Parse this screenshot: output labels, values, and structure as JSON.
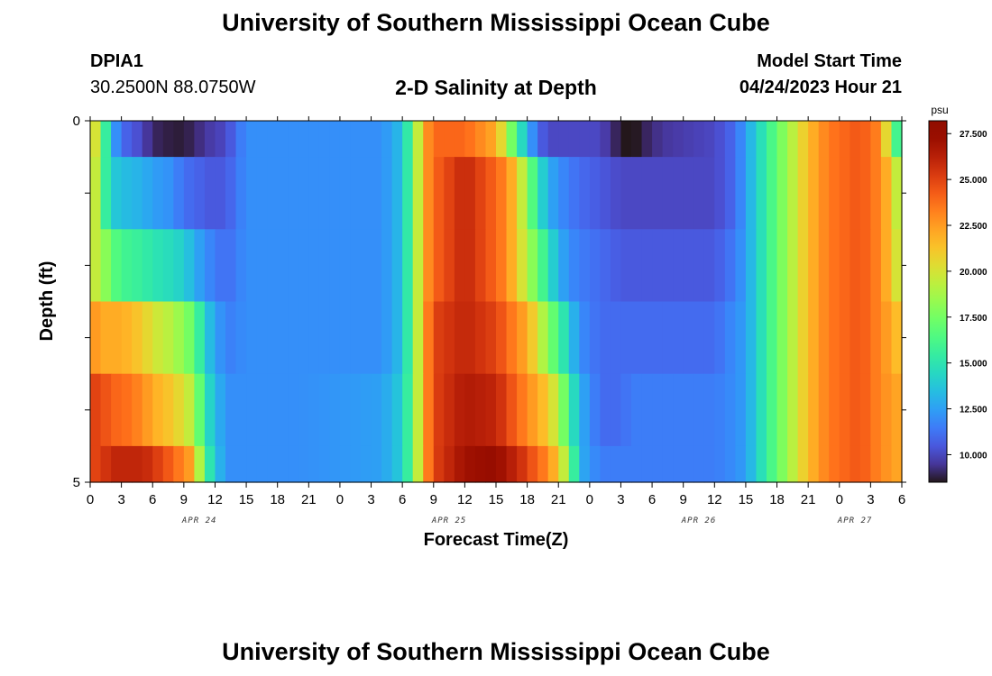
{
  "header": {
    "title": "University of Southern Mississippi Ocean Cube",
    "station": "DPIA1",
    "coords": "30.2500N  88.0750W",
    "subtitle": "2-D Salinity at Depth",
    "model_start_label": "Model Start Time",
    "model_start_value": "04/24/2023 Hour 21"
  },
  "footer": {
    "title": "University of Southern Mississippi Ocean Cube"
  },
  "chart_data": {
    "type": "heatmap",
    "title": "2-D Salinity at Depth",
    "xlabel": "Forecast Time(Z)",
    "ylabel": "Depth (ft)",
    "units": "psu",
    "colormap": "turbo",
    "value_range": [
      8.5,
      28.2
    ],
    "x_hours": [
      0,
      78
    ],
    "x_tick_labels": [
      "0",
      "3",
      "6",
      "9",
      "12",
      "15",
      "18",
      "21",
      "0",
      "3",
      "6",
      "9",
      "12",
      "15",
      "18",
      "21",
      "0",
      "3",
      "6",
      "9",
      "12",
      "15",
      "18",
      "21",
      "0",
      "3",
      "6"
    ],
    "date_labels": [
      {
        "text": "APR 24",
        "hour": 10.5
      },
      {
        "text": "APR 25",
        "hour": 34.5
      },
      {
        "text": "APR 26",
        "hour": 58.5
      },
      {
        "text": "APR 27",
        "hour": 73.5
      }
    ],
    "y_tick_labels": [
      "0",
      "5"
    ],
    "y_range": [
      0,
      5
    ],
    "depth_rows": [
      0,
      1,
      2,
      3,
      4,
      5
    ],
    "colorbar_ticks": [
      "27.500",
      "25.000",
      "22.500",
      "20.000",
      "17.500",
      "15.000",
      "12.500",
      "10.000"
    ],
    "colorbar_values": [
      27.5,
      25.0,
      22.5,
      20.0,
      17.5,
      15.0,
      12.5,
      10.0
    ],
    "keyframes": [
      {
        "hour": 0,
        "values": [
          22,
          22,
          20,
          23,
          25,
          25
        ]
      },
      {
        "hour": 1,
        "values": [
          18,
          17,
          19,
          22,
          25,
          25
        ]
      },
      {
        "hour": 2,
        "values": [
          13,
          14,
          17,
          22,
          24,
          26
        ]
      },
      {
        "hour": 3,
        "values": [
          11,
          13.5,
          16,
          22,
          24,
          26
        ]
      },
      {
        "hour": 5,
        "values": [
          10,
          13,
          15.5,
          21,
          23,
          26
        ]
      },
      {
        "hour": 6,
        "values": [
          9,
          12.5,
          15,
          20,
          22,
          25.5
        ]
      },
      {
        "hour": 8,
        "values": [
          8.7,
          12,
          14.5,
          19,
          21,
          24
        ]
      },
      {
        "hour": 9,
        "values": [
          8.7,
          11,
          14,
          18,
          20,
          23
        ]
      },
      {
        "hour": 10,
        "values": [
          9,
          11,
          13,
          17,
          19,
          22
        ]
      },
      {
        "hour": 11,
        "values": [
          9.5,
          10.5,
          12,
          14,
          15,
          16
        ]
      },
      {
        "hour": 13,
        "values": [
          10,
          10.5,
          11,
          11.5,
          12,
          12
        ]
      },
      {
        "hour": 15,
        "values": [
          12,
          12,
          12,
          12,
          12,
          12
        ]
      },
      {
        "hour": 20,
        "values": [
          12,
          12,
          12,
          12,
          12,
          12
        ]
      },
      {
        "hour": 28,
        "values": [
          12,
          12,
          12,
          12,
          12.5,
          12.5
        ]
      },
      {
        "hour": 30,
        "values": [
          13.5,
          13.5,
          13.5,
          13.5,
          14,
          14
        ]
      },
      {
        "hour": 31,
        "values": [
          17,
          17,
          17,
          17,
          17,
          17
        ]
      },
      {
        "hour": 32,
        "values": [
          22,
          22,
          22,
          22,
          22,
          22
        ]
      },
      {
        "hour": 33,
        "values": [
          24,
          24,
          24,
          25,
          25,
          25
        ]
      },
      {
        "hour": 36,
        "values": [
          24,
          26,
          26,
          26,
          26.5,
          27
        ]
      },
      {
        "hour": 39,
        "values": [
          22,
          24,
          24,
          25,
          26,
          27.5
        ]
      },
      {
        "hour": 40,
        "values": [
          19,
          23,
          23,
          24,
          25,
          26.5
        ]
      },
      {
        "hour": 41,
        "values": [
          16,
          21,
          21,
          23,
          24,
          26
        ]
      },
      {
        "hour": 42,
        "values": [
          13,
          18,
          19,
          22,
          23,
          25
        ]
      },
      {
        "hour": 43,
        "values": [
          11,
          15,
          17,
          20,
          22,
          24
        ]
      },
      {
        "hour": 44,
        "values": [
          10,
          13,
          15,
          18,
          21,
          23
        ]
      },
      {
        "hour": 45,
        "values": [
          10,
          12,
          13,
          16,
          19,
          21
        ]
      },
      {
        "hour": 46,
        "values": [
          10,
          11.5,
          12,
          14,
          16,
          18
        ]
      },
      {
        "hour": 47,
        "values": [
          10,
          11,
          11.5,
          12,
          13,
          13
        ]
      },
      {
        "hour": 49,
        "values": [
          10,
          10.5,
          11,
          11,
          11,
          11.5
        ]
      },
      {
        "hour": 51,
        "values": [
          8.6,
          10,
          10.5,
          11,
          11,
          11.5
        ]
      },
      {
        "hour": 52,
        "values": [
          8.3,
          10,
          10.5,
          11,
          11.5,
          11.5
        ]
      },
      {
        "hour": 53,
        "values": [
          8.8,
          10,
          10.5,
          11,
          11.5,
          11.5
        ]
      },
      {
        "hour": 55,
        "values": [
          9.5,
          10,
          10.5,
          11,
          11.5,
          11.5
        ]
      },
      {
        "hour": 60,
        "values": [
          10,
          10,
          10.5,
          11,
          11.5,
          11.5
        ]
      },
      {
        "hour": 62,
        "values": [
          11,
          11,
          11.5,
          12,
          12,
          12
        ]
      },
      {
        "hour": 63,
        "values": [
          12.5,
          12.5,
          12.5,
          12.5,
          12.5,
          12.5
        ]
      },
      {
        "hour": 64,
        "values": [
          14,
          14,
          14,
          14,
          14,
          14
        ]
      },
      {
        "hour": 65,
        "values": [
          15.5,
          15.5,
          15.5,
          15.5,
          15.5,
          15.5
        ]
      },
      {
        "hour": 66,
        "values": [
          17,
          17,
          17,
          17,
          17,
          17
        ]
      },
      {
        "hour": 67,
        "values": [
          18.5,
          18.5,
          18.5,
          18.5,
          18.5,
          18.5
        ]
      },
      {
        "hour": 68,
        "values": [
          20,
          20,
          20,
          20,
          20,
          20
        ]
      },
      {
        "hour": 69,
        "values": [
          21.5,
          21.5,
          21.5,
          21.5,
          21.5,
          21.5
        ]
      },
      {
        "hour": 71,
        "values": [
          23.5,
          23.5,
          23.5,
          23.5,
          23.5,
          23.5
        ]
      },
      {
        "hour": 74,
        "values": [
          24.5,
          24.5,
          24.5,
          24.5,
          24.5,
          24.5
        ]
      },
      {
        "hour": 76,
        "values": [
          23,
          23,
          23,
          23,
          23,
          23
        ]
      },
      {
        "hour": 77,
        "values": [
          18,
          21,
          21,
          22,
          22.5,
          22.5
        ]
      },
      {
        "hour": 78,
        "values": [
          14,
          18,
          19,
          21,
          22,
          22
        ]
      }
    ]
  }
}
